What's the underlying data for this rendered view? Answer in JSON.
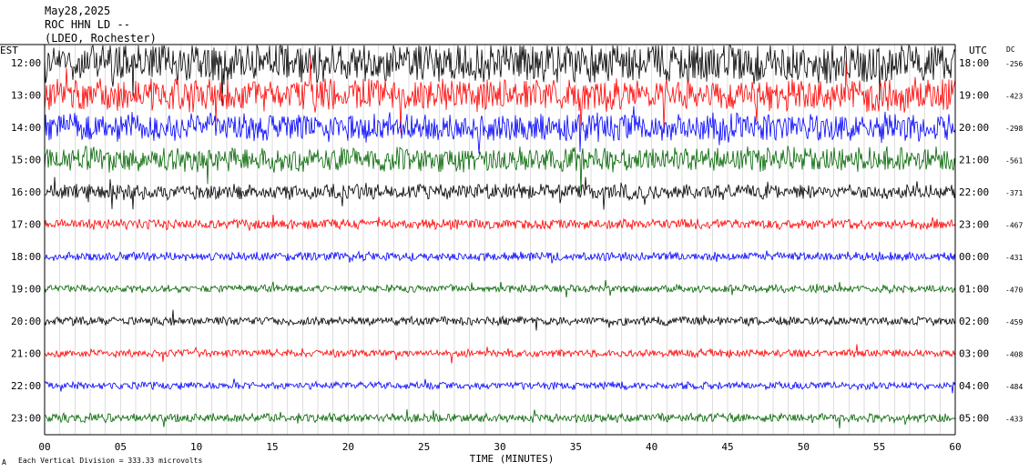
{
  "header": {
    "date": "May28,2025",
    "station": "ROC HHN LD --",
    "network": "(LDEO, Rochester)"
  },
  "axes": {
    "left_zone": "EST",
    "right_zone": "UTC",
    "dc_label": "DC",
    "xlabel": "TIME (MINUTES)"
  },
  "footer": {
    "scale_note": "Each Vertical Division = 333.33 microvolts",
    "corner_mark": "A"
  },
  "chart_data": {
    "type": "line",
    "title": "May28,2025 ROC HHN LD -- (LDEO, Rochester)",
    "xlabel": "TIME (MINUTES)",
    "xlim": [
      0,
      60
    ],
    "x_ticks": [
      "00",
      "05",
      "10",
      "15",
      "20",
      "25",
      "30",
      "35",
      "40",
      "45",
      "50",
      "55",
      "60"
    ],
    "grid": "vertical lines every minute",
    "trace_colors": [
      "#000000",
      "#ff0000",
      "#0000ff",
      "#006400"
    ],
    "rows": [
      {
        "est": "12:00",
        "utc": "18:00",
        "dc": "-256",
        "color": "#000000",
        "amp": 3.2
      },
      {
        "est": "13:00",
        "utc": "19:00",
        "dc": "-423",
        "color": "#ff0000",
        "amp": 2.6
      },
      {
        "est": "14:00",
        "utc": "20:00",
        "dc": "-298",
        "color": "#0000ff",
        "amp": 2.2
      },
      {
        "est": "15:00",
        "utc": "21:00",
        "dc": "-561",
        "color": "#006400",
        "amp": 2.0
      },
      {
        "est": "16:00",
        "utc": "22:00",
        "dc": "-371",
        "color": "#000000",
        "amp": 1.2
      },
      {
        "est": "17:00",
        "utc": "23:00",
        "dc": "-467",
        "color": "#ff0000",
        "amp": 0.8
      },
      {
        "est": "18:00",
        "utc": "00:00",
        "dc": "-431",
        "color": "#0000ff",
        "amp": 0.7
      },
      {
        "est": "19:00",
        "utc": "01:00",
        "dc": "-470",
        "color": "#006400",
        "amp": 0.6
      },
      {
        "est": "20:00",
        "utc": "02:00",
        "dc": "-459",
        "color": "#000000",
        "amp": 0.7
      },
      {
        "est": "21:00",
        "utc": "03:00",
        "dc": "-408",
        "color": "#ff0000",
        "amp": 0.6
      },
      {
        "est": "22:00",
        "utc": "04:00",
        "dc": "-484",
        "color": "#0000ff",
        "amp": 0.6
      },
      {
        "est": "23:00",
        "utc": "05:00",
        "dc": "-433",
        "color": "#006400",
        "amp": 0.7
      }
    ]
  }
}
